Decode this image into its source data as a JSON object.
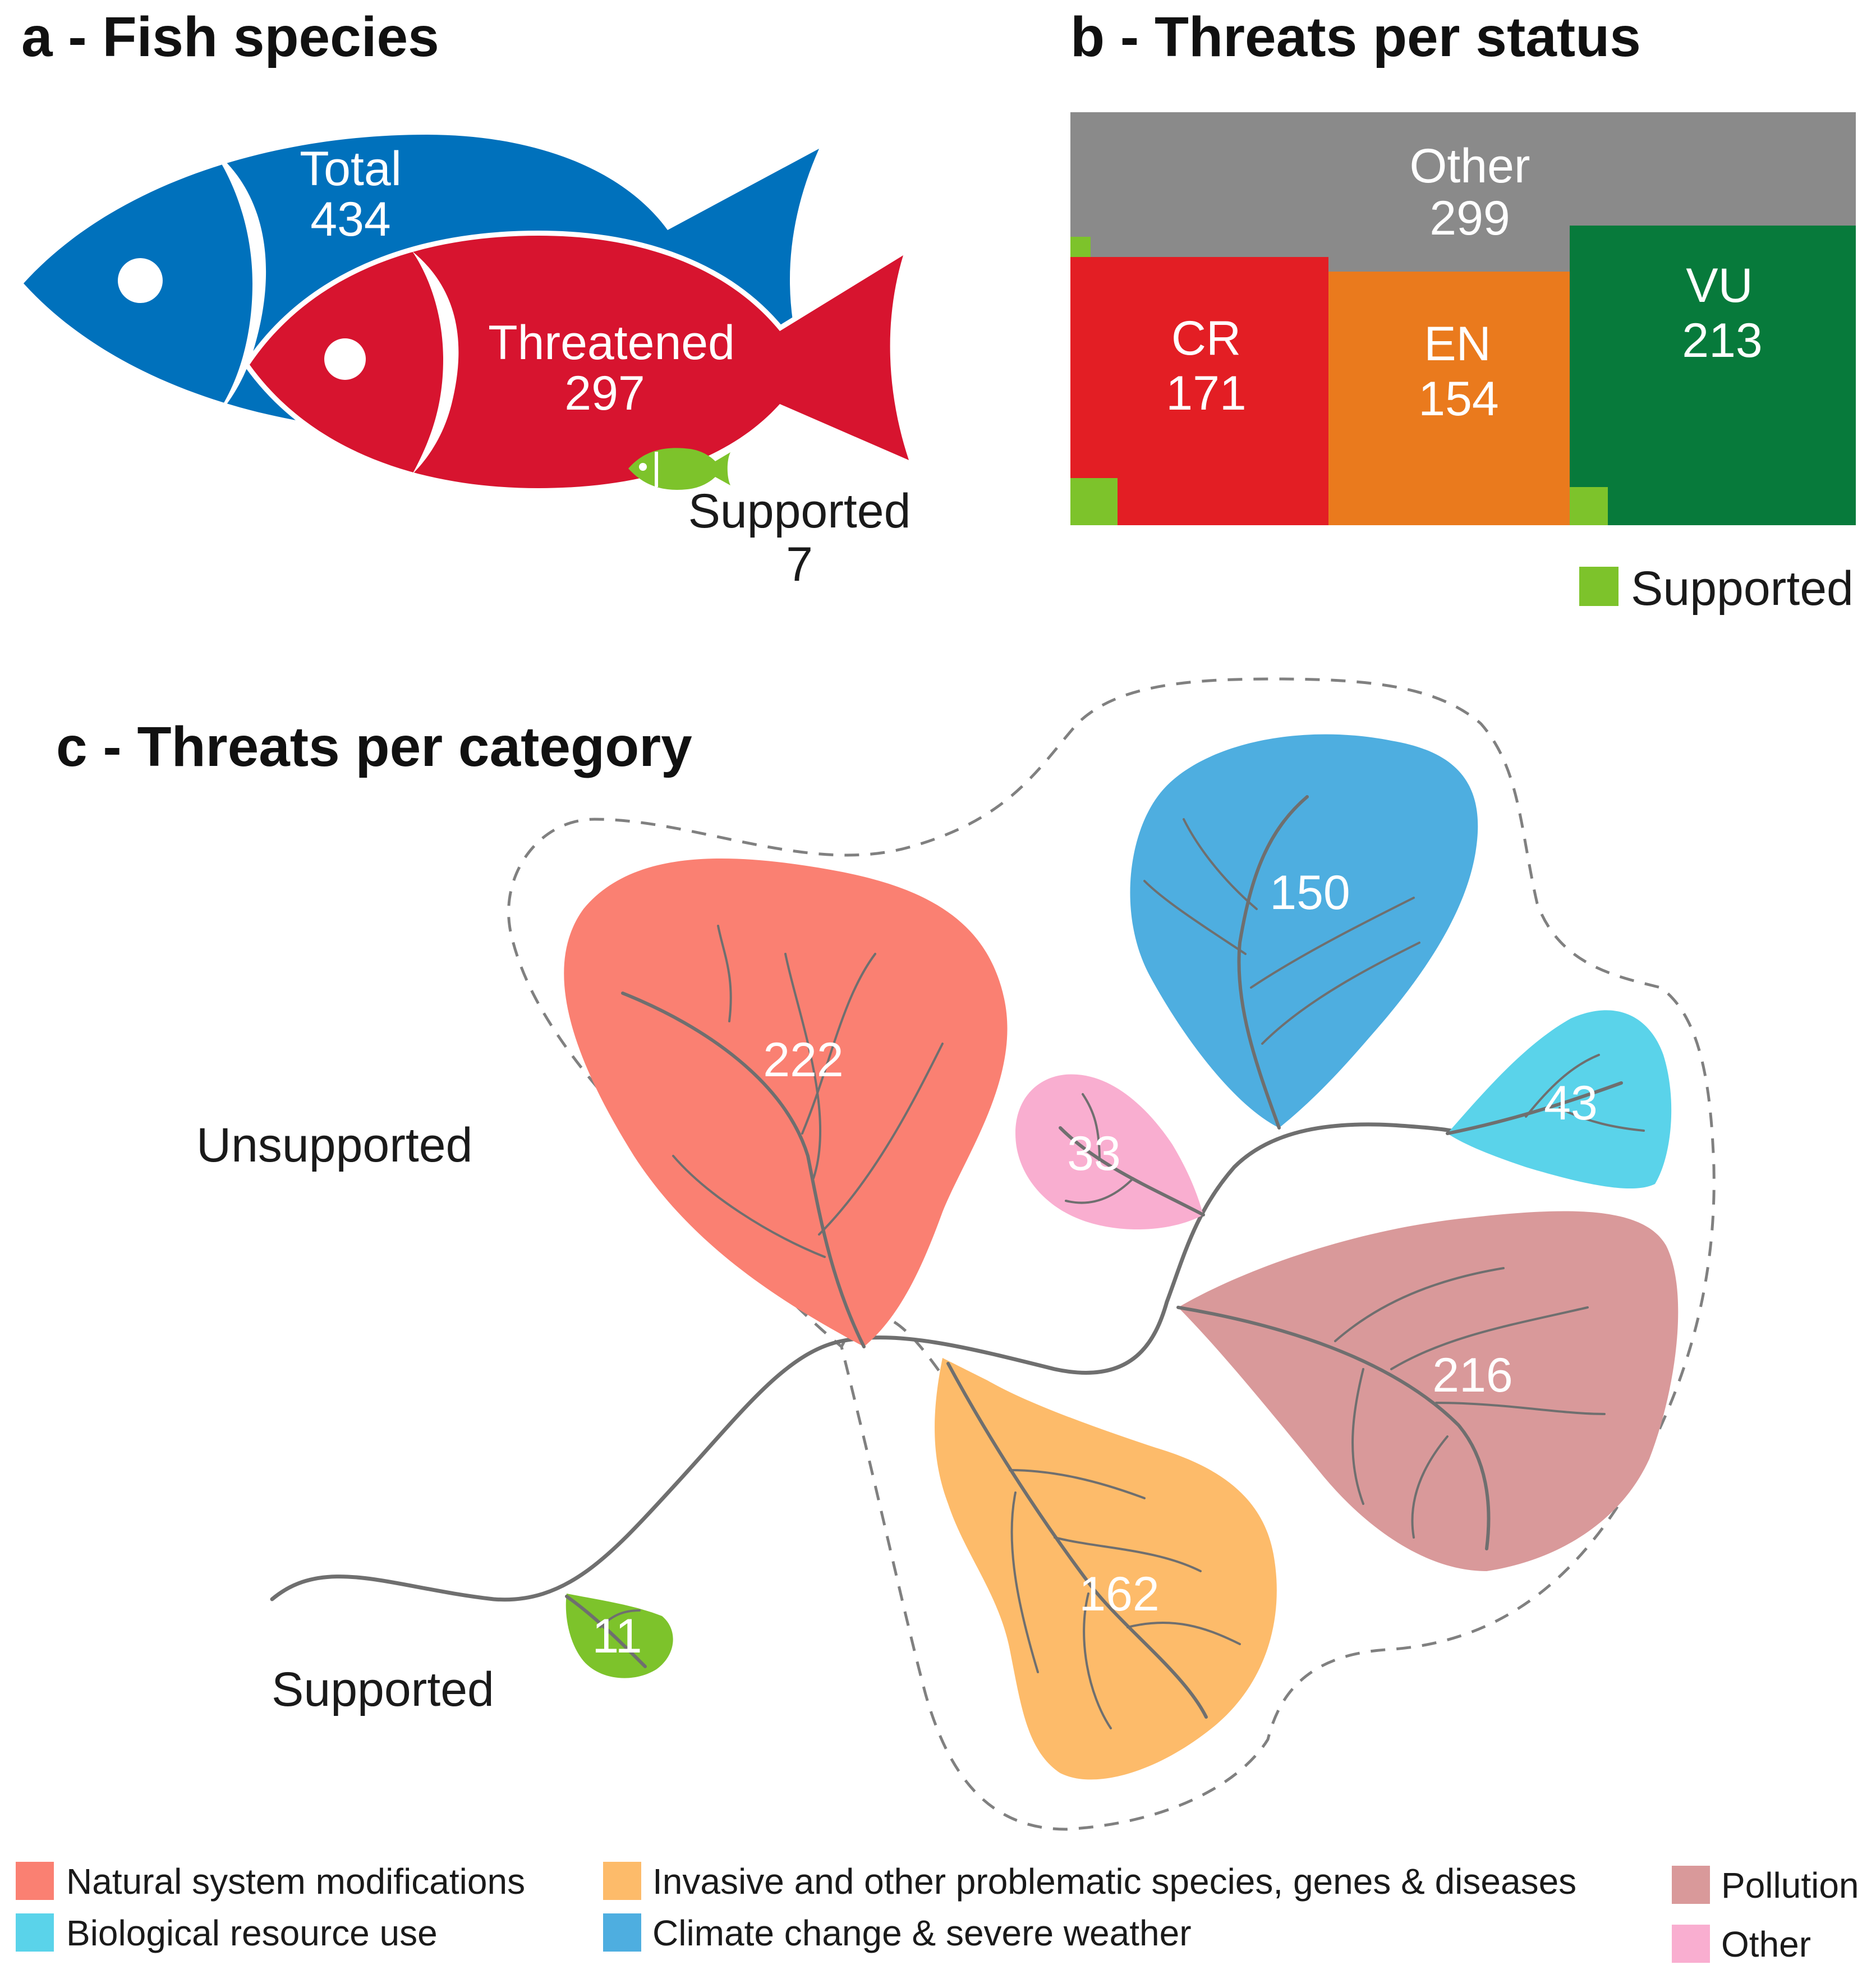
{
  "colors": {
    "fish_total": "#0071bc",
    "fish_threatened": "#d7142f",
    "supported": "#7dc32b",
    "other_status": "#8a8a8a",
    "CR": "#e31e24",
    "EN": "#ea7a1d",
    "VU": "#077a3b",
    "natural_system": "#fa8072",
    "biological_resource": "#5ad3ea",
    "invasive": "#fdbb6a",
    "climate": "#4eaee0",
    "pollution": "#d9999a",
    "other_threat": "#f9aed0",
    "branch": "#6f6f6f",
    "dashed_outline": "#808080"
  },
  "chart_data": [
    {
      "panel": "a",
      "title": "a - Fish species",
      "type": "pictorial",
      "items": [
        {
          "label": "Total",
          "value": 434
        },
        {
          "label": "Threatened",
          "value": 297
        },
        {
          "label": "Supported",
          "value": 7
        }
      ]
    },
    {
      "panel": "b",
      "title": "b - Threats per status",
      "type": "treemap",
      "items": [
        {
          "label": "Other",
          "value": 299,
          "supported": 1
        },
        {
          "label": "CR",
          "value": 171,
          "supported": 3
        },
        {
          "label": "EN",
          "value": 154,
          "supported": 0
        },
        {
          "label": "VU",
          "value": 213,
          "supported": 1
        }
      ],
      "legend": [
        "Supported"
      ]
    },
    {
      "panel": "c",
      "title": "c - Threats per category",
      "type": "tree",
      "groups": [
        "Unsupported",
        "Supported"
      ],
      "leaves": [
        {
          "category": "Natural system modifications",
          "value": 222,
          "group": "Unsupported"
        },
        {
          "category": "Climate change & severe weather",
          "value": 150,
          "group": "Unsupported"
        },
        {
          "category": "Other",
          "value": 33,
          "group": "Unsupported"
        },
        {
          "category": "Biological resource use",
          "value": 43,
          "group": "Unsupported"
        },
        {
          "category": "Pollution",
          "value": 216,
          "group": "Unsupported"
        },
        {
          "category": "Invasive and other problematic species, genes & diseases",
          "value": 162,
          "group": "Unsupported"
        },
        {
          "category": "Invasive and other problematic species, genes & diseases",
          "value": 11,
          "group": "Supported"
        }
      ],
      "legend": [
        "Natural system modifications",
        "Biological resource use",
        "Invasive and other problematic species, genes & diseases",
        "Climate change & severe weather",
        "Pollution",
        "Other"
      ]
    }
  ]
}
